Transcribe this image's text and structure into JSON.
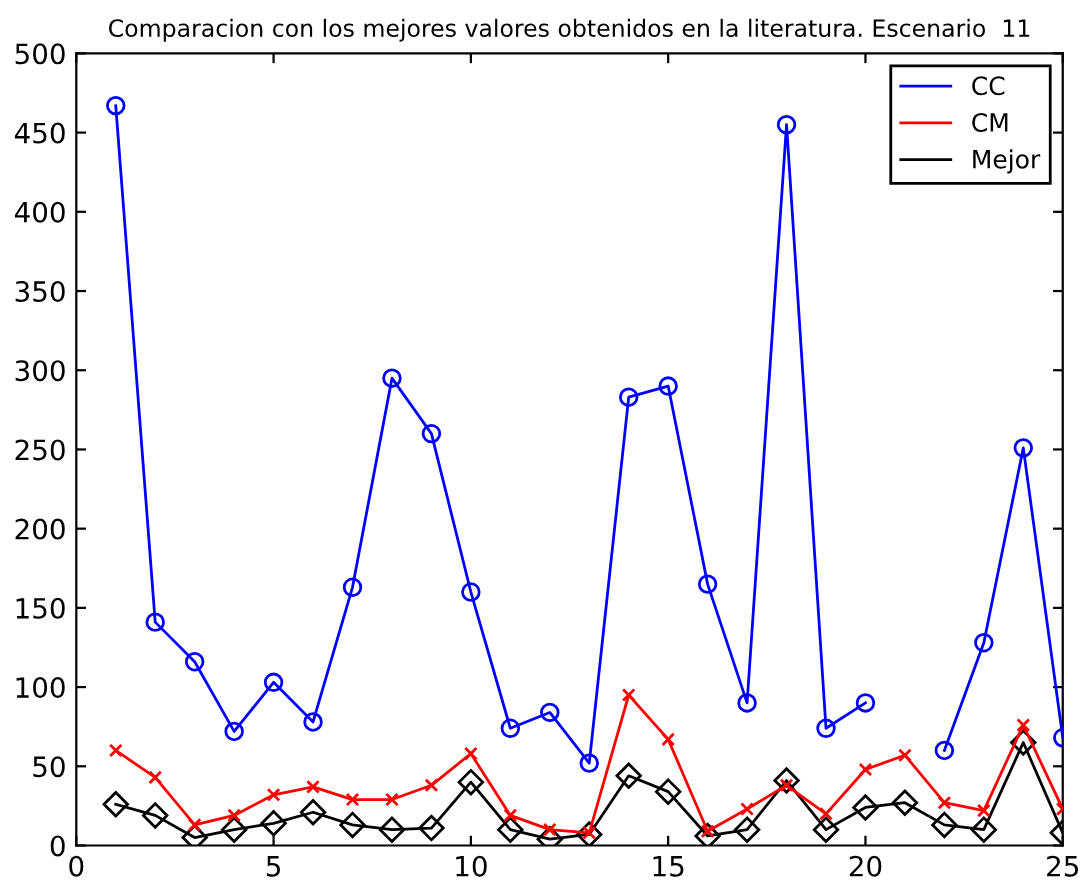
{
  "chart_data": {
    "type": "line",
    "title": "Comparacion con los mejores valores obtenidos en la literatura. Escenario  11",
    "x": [
      1,
      2,
      3,
      4,
      5,
      6,
      7,
      8,
      9,
      10,
      11,
      12,
      13,
      14,
      15,
      16,
      17,
      18,
      19,
      20,
      21,
      22,
      23,
      24,
      25
    ],
    "series": [
      {
        "name": "CC",
        "color": "#0000ff",
        "marker": "circle",
        "values": [
          467,
          141,
          116,
          72,
          103,
          78,
          163,
          295,
          260,
          160,
          74,
          84,
          52,
          283,
          290,
          165,
          90,
          455,
          74,
          90,
          null,
          60,
          128,
          251,
          68
        ]
      },
      {
        "name": "CM",
        "color": "#ff0000",
        "marker": "cross",
        "values": [
          60,
          43,
          13,
          19,
          32,
          37,
          29,
          29,
          38,
          58,
          19,
          10,
          8,
          95,
          67,
          9,
          23,
          38,
          20,
          48,
          57,
          27,
          22,
          76,
          23
        ]
      },
      {
        "name": "Mejor",
        "color": "#000000",
        "marker": "diamond",
        "values": [
          26,
          19,
          5,
          10,
          14,
          21,
          13,
          10,
          11,
          40,
          10,
          4,
          7,
          44,
          34,
          6,
          10,
          41,
          10,
          24,
          27,
          13,
          10,
          65,
          8
        ]
      }
    ],
    "xlim": [
      0,
      25
    ],
    "xticks": [
      0,
      5,
      10,
      15,
      20,
      25
    ],
    "ylim": [
      0,
      500
    ],
    "yticks": [
      0,
      50,
      100,
      150,
      200,
      250,
      300,
      350,
      400,
      450,
      500
    ],
    "grid": false,
    "legend": "top right",
    "line_style": "solid"
  }
}
